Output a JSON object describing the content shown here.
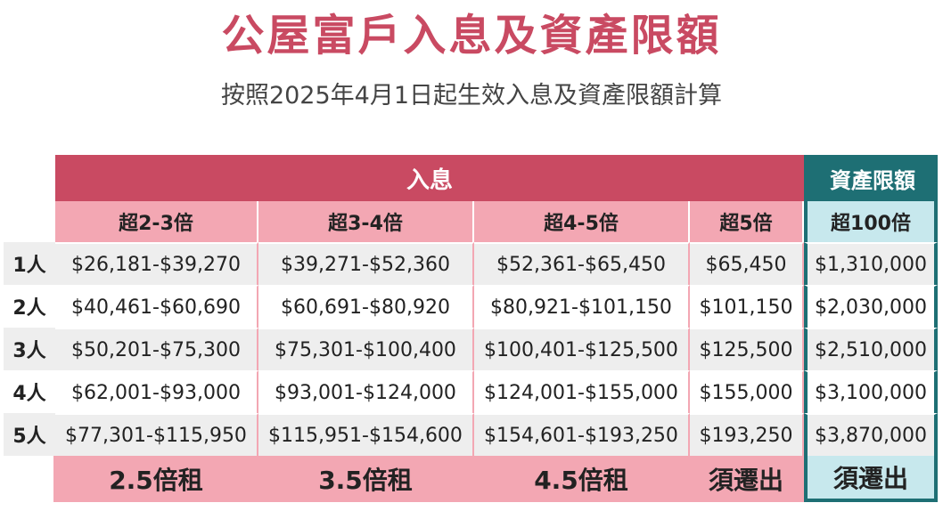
{
  "title": "公屋富戶入息及資產限額",
  "subtitle": "按照2025年4月1日起生效入息及資產限額計算",
  "table": {
    "income_header": "入息",
    "asset_header": "資產限額",
    "sub_headers": [
      "超2-3倍",
      "超3-4倍",
      "超4-5倍",
      "超5倍"
    ],
    "asset_sub_header": "超100倍",
    "rows": [
      {
        "label": "1人",
        "cells": [
          "$26,181-$39,270",
          "$39,271-$52,360",
          "$52,361-$65,450",
          "$65,450"
        ],
        "asset": "$1,310,000"
      },
      {
        "label": "2人",
        "cells": [
          "$40,461-$60,690",
          "$60,691-$80,920",
          "$80,921-$101,150",
          "$101,150"
        ],
        "asset": "$2,030,000"
      },
      {
        "label": "3人",
        "cells": [
          "$50,201-$75,300",
          "$75,301-$100,400",
          "$100,401-$125,500",
          "$125,500"
        ],
        "asset": "$2,510,000"
      },
      {
        "label": "4人",
        "cells": [
          "$62,001-$93,000",
          "$93,001-$124,000",
          "$124,001-$155,000",
          "$155,000"
        ],
        "asset": "$3,100,000"
      },
      {
        "label": "5人",
        "cells": [
          "$77,301-$115,950",
          "$115,951-$154,600",
          "$154,601-$193,250",
          "$193,250"
        ],
        "asset": "$3,870,000"
      }
    ],
    "footer": [
      "2.5倍租",
      "3.5倍租",
      "4.5倍租",
      "須遷出"
    ],
    "asset_footer": "須遷出"
  },
  "colors": {
    "title": "#c94a62",
    "income_header_bg": "#c94a62",
    "sub_header_bg": "#f3a7b3",
    "asset_header_bg": "#1e6f74",
    "asset_sub_bg": "#c7e8ed",
    "row_alt_bg": "#eeeeee"
  }
}
